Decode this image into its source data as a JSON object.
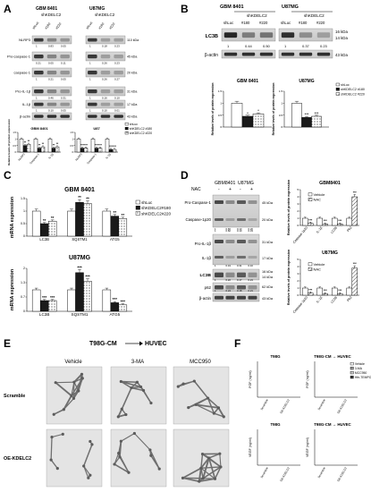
{
  "panels": {
    "A": {
      "letter": "A",
      "lines": [
        "GBM 8401",
        "U87MG"
      ],
      "group_label": "shKDELC2",
      "conditions": [
        "shLuc",
        "#180",
        "#220"
      ],
      "blot_labels": [
        "NLRP3",
        "Pro-caspase-1",
        "caspase-1",
        "Pro-IL-1β",
        "IL-1β",
        "β-actin"
      ],
      "mw": [
        "110 kDa",
        "45 kDa",
        "20 kDa",
        "31 kDa",
        "17 kDa",
        "43 kDa"
      ],
      "densities_left": [
        [
          "1",
          "0.83",
          "0.05"
        ],
        [
          "0.21",
          "0.05",
          "0.11"
        ],
        [
          "1",
          "0.21",
          "0.05"
        ],
        [
          "1",
          "0.46",
          "0.31"
        ],
        [
          "1",
          "0.10",
          "0.05"
        ]
      ],
      "densities_right": [
        [
          "1",
          "0.18",
          "0.23"
        ],
        [
          "1",
          "0.26",
          "0.23"
        ],
        [
          "1",
          "0.26",
          "0.27"
        ],
        [
          "1",
          "0.16",
          "0.10"
        ],
        [
          "1",
          "0.10",
          "0.01"
        ]
      ],
      "chart_titles": [
        "GBM 8401",
        "U87"
      ],
      "ylabel": "Relative levels of protein expression",
      "categories": [
        "NLRP3",
        "Caspase-1",
        "IL-1β"
      ],
      "legend": [
        "shLuc",
        "shKDELC2 #180",
        "shKDELC2 #220"
      ]
    },
    "B": {
      "letter": "B",
      "lines": [
        "GBM 8401",
        "U87MG"
      ],
      "group_label": "shKDELC2",
      "conditions": [
        "shLuc",
        "#180",
        "#220"
      ],
      "blot_labels": [
        "LC3B",
        "β-actin"
      ],
      "mw": [
        "16 kDa",
        "14 kDa",
        "43 kDa"
      ],
      "densities_left": [
        "1",
        "0.44",
        "0.50"
      ],
      "densities_right": [
        "1",
        "0.37",
        "0.23"
      ],
      "chart_titles": [
        "GBM 8401",
        "U87MG"
      ],
      "ylabel": "Relative levels of protein expression",
      "legend": [
        "shLuc",
        "shKDELC2 #180",
        "shKDELC2 #220"
      ],
      "stars": [
        "***",
        "*",
        "**",
        "***"
      ]
    },
    "C": {
      "letter": "C",
      "chart_titles": [
        "GBM 8401",
        "U87MG"
      ],
      "ylabel": "mRNA expression",
      "categories": [
        "LC3B",
        "SQSTM1",
        "ATG5"
      ],
      "legend": [
        "shLuc",
        "shKDELC2#180",
        "shKDELC2#220"
      ]
    },
    "D": {
      "letter": "D",
      "lines": [
        "GBM8401",
        "U87MG"
      ],
      "nac": "NAC",
      "signs": [
        "-",
        "+",
        "-",
        "+"
      ],
      "blot_labels": [
        "Pro-Caspase-1",
        "Caspase-1p20",
        "Pro-IL-1β",
        "IL-1β",
        "LC3B",
        "p62",
        "β-actin"
      ],
      "mw": [
        "45 kDa",
        "20 kDa",
        "31 kDa",
        "17 kDa",
        "16 kDa",
        "14 kDa",
        "62 kDa",
        "43 kDa"
      ],
      "densities": [
        [
          "1",
          "0.66",
          "0.13",
          "0.20"
        ],
        [
          "1",
          "0.82",
          "0.10",
          "0.33"
        ],
        [
          "1",
          "0.19",
          "0.31",
          "0.10"
        ],
        [
          "1",
          "0.22",
          "0.17",
          "0.21"
        ],
        [
          "1",
          "0.24",
          "0.18",
          "0.21"
        ]
      ],
      "chart_titles": [
        "GBM8401",
        "U87MG"
      ],
      "ylabel": "Relative levels of protein expression",
      "categories": [
        "Caspase-1p20",
        "IL-1β",
        "LC3B",
        "P62"
      ],
      "legend": [
        "Vehicle",
        "NAC"
      ]
    },
    "E": {
      "letter": "E",
      "title": "T98G-CM",
      "target": "HUVEC",
      "columns": [
        "Vehicle",
        "3-MA",
        "MCC950"
      ],
      "rows": [
        "Scramble",
        "OE-KDELC2"
      ]
    },
    "F": {
      "letter": "F",
      "titles": [
        "T98G",
        "T98G-CM",
        "HUVEC",
        "T98G",
        "T98G-CM",
        "HUVEC"
      ],
      "ylabels": [
        "FGF (ng/ml)",
        "FGF (ng/ml)",
        "VEGF (ng/ml)",
        "VEGF (ng/ml)"
      ],
      "categories": [
        "Scramble",
        "OE-KDELC2"
      ],
      "legend": [
        "Vehicle",
        "3-MA",
        "MCC950",
        "Hfn-TEMPO"
      ]
    }
  },
  "chart_data": [
    {
      "type": "bar",
      "title": "GBM 8401",
      "ylabel": "Relative levels of protein expression",
      "categories": [
        "NLRP3",
        "Caspase-1",
        "IL-1β"
      ],
      "ylim": [
        0,
        1.5
      ],
      "series": [
        {
          "name": "shLuc",
          "values": [
            1.0,
            1.0,
            1.0
          ]
        },
        {
          "name": "shKDELC2 #180",
          "values": [
            0.5,
            0.3,
            0.3
          ]
        },
        {
          "name": "shKDELC2 #220",
          "values": [
            0.6,
            0.4,
            0.4
          ]
        }
      ]
    },
    {
      "type": "bar",
      "title": "U87",
      "ylabel": "Relative levels of protein expression",
      "categories": [
        "NLRP3",
        "Caspase-1",
        "IL-1β"
      ],
      "ylim": [
        0,
        1.5
      ],
      "series": [
        {
          "name": "shLuc",
          "values": [
            1.0,
            1.0,
            1.0
          ]
        },
        {
          "name": "shKDELC2 #180",
          "values": [
            0.3,
            0.3,
            0.2
          ]
        },
        {
          "name": "shKDELC2 #220",
          "values": [
            0.3,
            0.3,
            0.2
          ]
        }
      ]
    },
    {
      "type": "bar",
      "title": "GBM 8401",
      "ylabel": "Relative levels of protein expression",
      "categories": [
        ""
      ],
      "ylim": [
        0,
        1.5
      ],
      "series": [
        {
          "name": "shLuc",
          "values": [
            1.0
          ]
        },
        {
          "name": "shKDELC2 #180",
          "values": [
            0.45
          ]
        },
        {
          "name": "shKDELC2 #220",
          "values": [
            0.55
          ]
        }
      ]
    },
    {
      "type": "bar",
      "title": "U87MG",
      "ylabel": "Relative levels of protein expression",
      "categories": [
        ""
      ],
      "ylim": [
        0,
        1.5
      ],
      "series": [
        {
          "name": "shLuc",
          "values": [
            1.0
          ]
        },
        {
          "name": "shKDELC2 #180",
          "values": [
            0.4
          ]
        },
        {
          "name": "shKDELC2 #220",
          "values": [
            0.45
          ]
        }
      ]
    },
    {
      "type": "bar",
      "title": "GBM 8401",
      "ylabel": "mRNA expression",
      "categories": [
        "LC3B",
        "SQSTM1",
        "ATG5"
      ],
      "ylim": [
        0,
        1.5
      ],
      "series": [
        {
          "name": "shLuc",
          "values": [
            1.0,
            1.0,
            1.0
          ]
        },
        {
          "name": "shKDELC2#180",
          "values": [
            0.5,
            1.35,
            0.8
          ]
        },
        {
          "name": "shKDELC2#220",
          "values": [
            0.6,
            1.3,
            0.7
          ]
        }
      ]
    },
    {
      "type": "bar",
      "title": "U87MG",
      "ylabel": "mRNA expression",
      "categories": [
        "LC3B",
        "SQSTM1",
        "ATG5"
      ],
      "ylim": [
        0,
        2
      ],
      "series": [
        {
          "name": "shLuc",
          "values": [
            1.0,
            1.0,
            1.0
          ]
        },
        {
          "name": "shKDELC2#180",
          "values": [
            0.5,
            1.8,
            0.4
          ]
        },
        {
          "name": "shKDELC2#220",
          "values": [
            0.5,
            1.4,
            0.3
          ]
        }
      ]
    },
    {
      "type": "bar",
      "title": "GBM8401",
      "ylabel": "Relative levels of protein expression",
      "categories": [
        "Caspase-1p20",
        "IL-1β",
        "LC3B",
        "P62"
      ],
      "ylim": [
        0,
        5
      ],
      "series": [
        {
          "name": "Vehicle",
          "values": [
            1.0,
            1.0,
            1.0,
            1.0
          ]
        },
        {
          "name": "NAC",
          "values": [
            0.3,
            0.2,
            0.2,
            4.0
          ]
        }
      ]
    },
    {
      "type": "bar",
      "title": "U87MG",
      "ylabel": "Relative levels of protein expression",
      "categories": [
        "Caspase-1p20",
        "IL-1β",
        "LC3B",
        "P62"
      ],
      "ylim": [
        0,
        5
      ],
      "series": [
        {
          "name": "Vehicle",
          "values": [
            1.0,
            1.0,
            1.0,
            1.0
          ]
        },
        {
          "name": "NAC",
          "values": [
            0.3,
            0.2,
            0.2,
            3.8
          ]
        }
      ]
    }
  ]
}
